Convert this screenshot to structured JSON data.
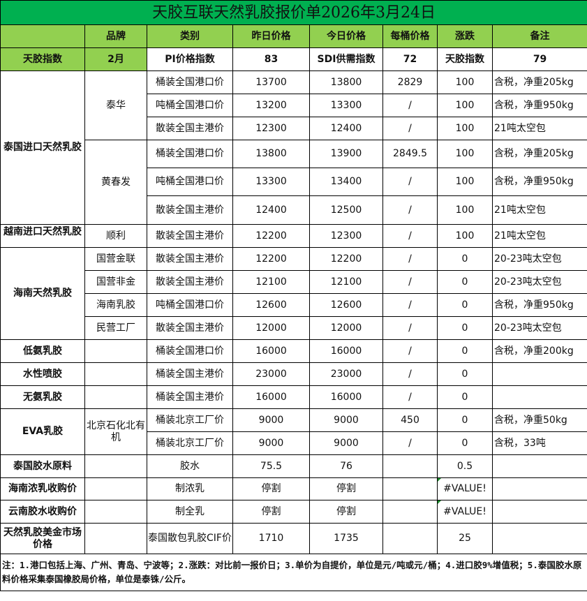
{
  "title": "天胶互联天然乳胶报价单2026年3月24日",
  "colors": {
    "title_bg": "#00b050",
    "header_bg": "#92d050"
  },
  "headers": [
    "",
    "品牌",
    "类别",
    "昨日价格",
    "今日价格",
    "每桶价格",
    "涨跌",
    "备注"
  ],
  "index_row": [
    "天胶指数",
    "2月",
    "PI价格指数",
    "83",
    "SDI供需指数",
    "72",
    "天胶指数",
    "79"
  ],
  "groups": [
    {
      "category": "泰国进口天然乳胶",
      "brands": [
        {
          "brand": "泰华",
          "items": [
            {
              "type": "桶装全国港口价",
              "yesterday": "13700",
              "today": "13800",
              "per_barrel": "2829",
              "change": "100",
              "note": "含税，净重205kg"
            },
            {
              "type": "吨桶全国港口价",
              "yesterday": "13200",
              "today": "13300",
              "per_barrel": "/",
              "change": "100",
              "note": "含税，净重950kg"
            },
            {
              "type": "散装全国主港价",
              "yesterday": "12300",
              "today": "12400",
              "per_barrel": "/",
              "change": "100",
              "note": "21吨太空包"
            }
          ]
        },
        {
          "brand": "黄春发",
          "items": [
            {
              "type": "桶装全国港口价",
              "yesterday": "13800",
              "today": "13900",
              "per_barrel": "2849.5",
              "change": "100",
              "note": "含税，净重205kg"
            },
            {
              "type": "吨桶全国港口价",
              "yesterday": "13300",
              "today": "13400",
              "per_barrel": "/",
              "change": "100",
              "note": "含税，净重950kg"
            },
            {
              "type": "散装全国主港价",
              "yesterday": "12400",
              "today": "12500",
              "per_barrel": "/",
              "change": "100",
              "note": "21吨太空包"
            }
          ]
        }
      ]
    },
    {
      "category": "越南进口天然乳胶",
      "clip": true,
      "brands": [
        {
          "brand": "顺利",
          "items": [
            {
              "type": "散装全国主港价",
              "yesterday": "12200",
              "today": "12300",
              "per_barrel": "/",
              "change": "100",
              "note": "21吨太空包"
            }
          ]
        }
      ]
    },
    {
      "category": "海南天然乳胶",
      "brands": [
        {
          "brand": "国营金联",
          "items": [
            {
              "type": "散装全国主港价",
              "yesterday": "12200",
              "today": "12200",
              "per_barrel": "/",
              "change": "0",
              "note": "20-23吨太空包"
            }
          ]
        },
        {
          "brand": "国营非金",
          "items": [
            {
              "type": "散装全国主港价",
              "yesterday": "12100",
              "today": "12100",
              "per_barrel": "/",
              "change": "0",
              "note": "20-23吨太空包"
            }
          ]
        },
        {
          "brand": "海南乳胶",
          "items": [
            {
              "type": "吨桶全国港口价",
              "yesterday": "12600",
              "today": "12600",
              "per_barrel": "/",
              "change": "0",
              "note": "含税，净重950kg"
            }
          ]
        },
        {
          "brand": "民营工厂",
          "items": [
            {
              "type": "散装全国主港价",
              "yesterday": "12000",
              "today": "12000",
              "per_barrel": "/",
              "change": "0",
              "note": "20-23吨太空包"
            }
          ]
        }
      ]
    },
    {
      "category": "低氨乳胶",
      "brands": [
        {
          "brand": "",
          "items": [
            {
              "type": "桶装全国港口价",
              "yesterday": "16000",
              "today": "16000",
              "per_barrel": "/",
              "change": "0",
              "note": "含税，净重200kg"
            }
          ]
        }
      ]
    },
    {
      "category": "水性喷胶",
      "brands": [
        {
          "brand": "",
          "items": [
            {
              "type": "桶装全国主港价",
              "yesterday": "23000",
              "today": "23000",
              "per_barrel": "/",
              "change": "0",
              "note": ""
            }
          ]
        }
      ]
    },
    {
      "category": "无氨乳胶",
      "brands": [
        {
          "brand": "",
          "items": [
            {
              "type": "桶装全国主港价",
              "yesterday": "16000",
              "today": "16000",
              "per_barrel": "/",
              "change": "0",
              "note": ""
            }
          ]
        }
      ]
    },
    {
      "category": "EVA乳胶",
      "brands": [
        {
          "brand": "北京石化北有机",
          "items": [
            {
              "type": "桶装北京工厂价",
              "yesterday": "9000",
              "today": "9000",
              "per_barrel": "450",
              "change": "0",
              "note": "含税，净重50kg"
            },
            {
              "type": "桶装北京工厂价",
              "yesterday": "9000",
              "today": "9000",
              "per_barrel": "/",
              "change": "0",
              "note": "含税，33吨"
            }
          ]
        }
      ]
    },
    {
      "category": "泰国胶水原料",
      "brands": [
        {
          "brand": "",
          "items": [
            {
              "type": "胶水",
              "yesterday": "75.5",
              "today": "76",
              "per_barrel": "",
              "change": "0.5",
              "note": ""
            }
          ]
        }
      ]
    },
    {
      "category": "海南浓乳收购价",
      "brands": [
        {
          "brand": "",
          "items": [
            {
              "type": "制浓乳",
              "yesterday": "停割",
              "today": "停割",
              "per_barrel": "",
              "change": "#VALUE!",
              "note": ""
            }
          ]
        }
      ]
    },
    {
      "category": "云南胶水收购价",
      "brands": [
        {
          "brand": "",
          "items": [
            {
              "type": "制全乳",
              "yesterday": "停割",
              "today": "停割",
              "per_barrel": "",
              "change": "#VALUE!",
              "note": ""
            }
          ]
        }
      ]
    },
    {
      "category": "天然乳胶美金市场价格",
      "brands": [
        {
          "brand": "",
          "items": [
            {
              "type": "泰国散包乳胶CIF价",
              "yesterday": "1710",
              "today": "1735",
              "per_barrel": "",
              "change": "25",
              "note": ""
            }
          ]
        }
      ]
    }
  ],
  "footnote": "注：1.港口包括上海、广州、青岛、宁波等；2.涨跌：对比前一报价日；3.单价为自提价，单位是元/吨或元/桶；4.进口胶9%增值税；5.泰国胶水原料价格采集泰国橡胶局价格，单位是泰铢/公斤。"
}
